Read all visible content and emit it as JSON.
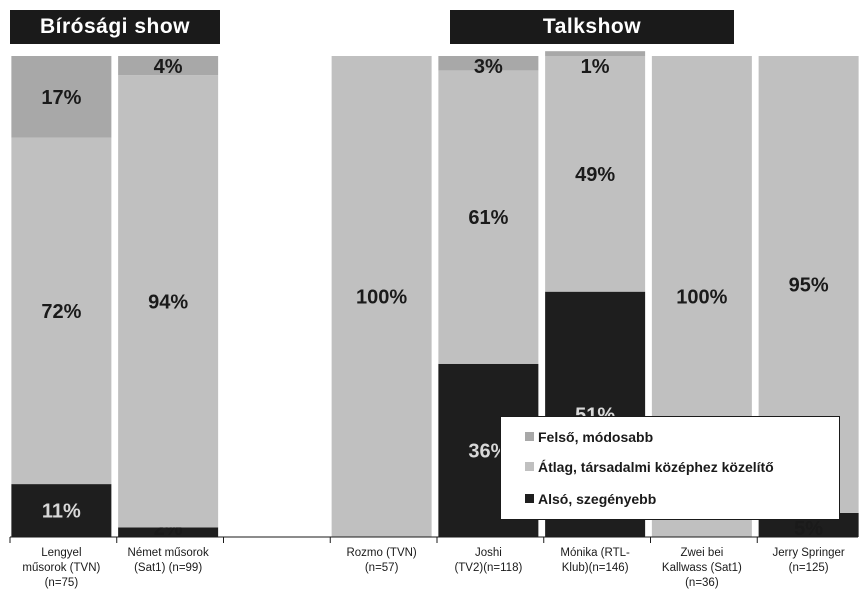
{
  "groups": [
    {
      "label": "Bírósági show"
    },
    {
      "label": "Talkshow"
    }
  ],
  "colors": {
    "felso": "#a8a8a8",
    "atlag": "#c0c0c0",
    "also": "#1e1e1e",
    "text": "#1a1a1a"
  },
  "chart_data": {
    "type": "bar",
    "stacked": true,
    "percent": true,
    "ylim": [
      0,
      100
    ],
    "grid": false,
    "legend_position": "bottom-right",
    "categories": [
      "Lengyel műsorok (TVN) (n=75)",
      "Német műsorok (Sat1) (n=99)",
      "",
      "Rozmo (TVN) (n=57)",
      "Joshi (TV2)(n=118)",
      "Mónika (RTL-Klub)(n=146)",
      "Zwei bei Kallwass (Sat1) (n=36)",
      "Jerry Springer (n=125)"
    ],
    "category_lines": [
      [
        "Lengyel",
        "műsorok (TVN)",
        "(n=75)"
      ],
      [
        "Német műsorok",
        "(Sat1) (n=99)"
      ],
      [],
      [
        "Rozmo (TVN)",
        "(n=57)"
      ],
      [
        "Joshi",
        "(TV2)(n=118)"
      ],
      [
        "Mónika (RTL-",
        "Klub)(n=146)"
      ],
      [
        "Zwei bei",
        "Kallwass (Sat1)",
        "(n=36)"
      ],
      [
        "Jerry Springer",
        "(n=125)"
      ]
    ],
    "series": [
      {
        "name": "Alsó, szegényebb",
        "values": [
          11,
          2,
          null,
          0,
          36,
          51,
          0,
          5
        ],
        "labels": [
          "11%",
          "2%",
          "",
          "",
          "36%",
          "51%",
          "",
          "5%"
        ]
      },
      {
        "name": "Átlag, társadalmi középhez közelítő",
        "values": [
          72,
          94,
          null,
          100,
          61,
          49,
          100,
          95
        ],
        "labels": [
          "72%",
          "94%",
          "",
          "100%",
          "61%",
          "49%",
          "100%",
          "95%"
        ]
      },
      {
        "name": "Felső, módosabb",
        "values": [
          17,
          4,
          null,
          0,
          3,
          1,
          0,
          0
        ],
        "labels": [
          "17%",
          "4%",
          "",
          "",
          "3%",
          "1%",
          "",
          ""
        ]
      }
    ],
    "legend_order": [
      "Felső, módosabb",
      "Átlag, társadalmi középhez közelítő",
      "Alsó, szegényebb"
    ]
  }
}
